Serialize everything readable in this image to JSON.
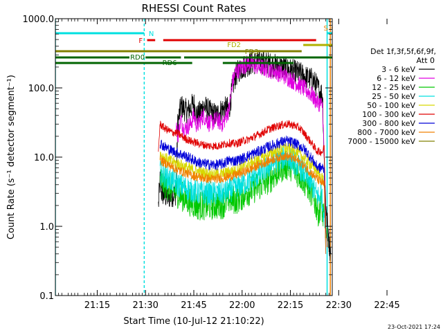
{
  "chart_data": {
    "type": "line",
    "title": "RHESSI Count Rates",
    "xlabel": "Start Time (10-Jul-12 21:10:22)",
    "ylabel": "Count Rate (s⁻¹ detector segment⁻¹)",
    "yscale": "log",
    "xlim_minutes": [
      -8,
      78
    ],
    "ylim": [
      0.1,
      1000
    ],
    "x_ticks": [
      {
        "t": 5,
        "label": "21:15"
      },
      {
        "t": 20,
        "label": "21:30"
      },
      {
        "t": 35,
        "label": "21:45"
      },
      {
        "t": 50,
        "label": "22:00"
      },
      {
        "t": 65,
        "label": "22:15"
      },
      {
        "t": 80,
        "label": "22:30"
      },
      {
        "t": 95,
        "label": "22:45"
      }
    ],
    "y_ticks": [
      {
        "v": 0.1,
        "label": "0.1"
      },
      {
        "v": 1,
        "label": "1.0"
      },
      {
        "v": 10,
        "label": "10.0"
      },
      {
        "v": 100,
        "label": "100.0"
      },
      {
        "v": 1000,
        "label": "1000.0"
      }
    ],
    "legend": {
      "header": [
        "Det 1f,3f,5f,6f,9f,",
        "Att 0"
      ],
      "placement": "right",
      "entries": [
        {
          "label": "3 - 6 keV",
          "color": "#000000"
        },
        {
          "label": "6 - 12 keV",
          "color": "#e000e0"
        },
        {
          "label": "12 - 25 keV",
          "color": "#00c800"
        },
        {
          "label": "25 - 50 keV",
          "color": "#00e0e0"
        },
        {
          "label": "50 - 100 keV",
          "color": "#d8d800"
        },
        {
          "label": "100 - 300 keV",
          "color": "#e00000"
        },
        {
          "label": "300 - 800 keV",
          "color": "#0000d8"
        },
        {
          "label": "800 - 7000 keV",
          "color": "#f08000"
        },
        {
          "label": "7000 - 15000 keV",
          "color": "#808000"
        }
      ]
    },
    "series": [
      {
        "name": "3 - 6 keV",
        "color": "#000000",
        "noise": 0.18,
        "points": [
          [
            24,
            2.0
          ],
          [
            24.5,
            4.5
          ],
          [
            25,
            3.0
          ],
          [
            27,
            2.6
          ],
          [
            28,
            2.8
          ],
          [
            29.5,
            3.0
          ],
          [
            30,
            30
          ],
          [
            31,
            55
          ],
          [
            33,
            45
          ],
          [
            35,
            60
          ],
          [
            36,
            38
          ],
          [
            38,
            55
          ],
          [
            40,
            45
          ],
          [
            42,
            40
          ],
          [
            44,
            50
          ],
          [
            46,
            50
          ],
          [
            47,
            100
          ],
          [
            48,
            150
          ],
          [
            49,
            180
          ],
          [
            51,
            210
          ],
          [
            53,
            230
          ],
          [
            56,
            240
          ],
          [
            59,
            215
          ],
          [
            62,
            200
          ],
          [
            65,
            180
          ],
          [
            68,
            160
          ],
          [
            70,
            140
          ],
          [
            72,
            130
          ],
          [
            73,
            110
          ],
          [
            74,
            90
          ],
          [
            75,
            80
          ],
          [
            75.5,
            8
          ],
          [
            76,
            2
          ],
          [
            77,
            0.6
          ],
          [
            77.5,
            0.4
          ]
        ]
      },
      {
        "name": "6 - 12 keV",
        "color": "#e000e0",
        "noise": 0.13,
        "points": [
          [
            29.5,
            30
          ],
          [
            30,
            20
          ],
          [
            31,
            35
          ],
          [
            32,
            25
          ],
          [
            34,
            30
          ],
          [
            35,
            40
          ],
          [
            36,
            28
          ],
          [
            38,
            40
          ],
          [
            40,
            30
          ],
          [
            42,
            35
          ],
          [
            44,
            30
          ],
          [
            46,
            50
          ],
          [
            47,
            120
          ],
          [
            48,
            170
          ],
          [
            50,
            200
          ],
          [
            52,
            230
          ],
          [
            54,
            210
          ],
          [
            57,
            190
          ],
          [
            60,
            175
          ],
          [
            63,
            150
          ],
          [
            66,
            125
          ],
          [
            69,
            100
          ],
          [
            71,
            85
          ],
          [
            72,
            75
          ],
          [
            73,
            65
          ],
          [
            74,
            60
          ],
          [
            75,
            55
          ],
          [
            75.5,
            10
          ]
        ]
      },
      {
        "name": "12 - 25 keV",
        "color": "#00c800",
        "noise": 0.22,
        "points": [
          [
            24.5,
            4.5
          ],
          [
            27,
            3.8
          ],
          [
            30,
            3.0
          ],
          [
            33,
            2.4
          ],
          [
            36,
            2.0
          ],
          [
            40,
            2.0
          ],
          [
            44,
            2.1
          ],
          [
            46,
            2.5
          ],
          [
            48,
            2.4
          ],
          [
            52,
            3.2
          ],
          [
            56,
            4.0
          ],
          [
            60,
            5.5
          ],
          [
            63,
            7.5
          ],
          [
            65,
            7.5
          ],
          [
            68,
            5.5
          ],
          [
            71,
            3.5
          ],
          [
            73,
            2.0
          ],
          [
            74,
            1.5
          ],
          [
            74.5,
            2.5
          ],
          [
            75,
            1.5
          ],
          [
            76,
            1.0
          ],
          [
            76.5,
            0.5
          ]
        ]
      },
      {
        "name": "25 - 50 keV",
        "color": "#00e0e0",
        "noise": 0.18,
        "points": [
          [
            24.5,
            6.0
          ],
          [
            27,
            5.0
          ],
          [
            30,
            4.0
          ],
          [
            33,
            3.5
          ],
          [
            36,
            3.1
          ],
          [
            40,
            3.0
          ],
          [
            44,
            3.0
          ],
          [
            48,
            3.6
          ],
          [
            52,
            4.5
          ],
          [
            56,
            6.0
          ],
          [
            60,
            8.5
          ],
          [
            63,
            10.0
          ],
          [
            65,
            9.5
          ],
          [
            68,
            7.0
          ],
          [
            71,
            4.5
          ],
          [
            73,
            3.0
          ],
          [
            74,
            2.5
          ],
          [
            74.5,
            3.5
          ],
          [
            75,
            2.0
          ],
          [
            76,
            1.2
          ],
          [
            76.5,
            0.5
          ]
        ]
      },
      {
        "name": "50 - 100 keV",
        "color": "#d8d800",
        "noise": 0.09,
        "points": [
          [
            24.5,
            11.0
          ],
          [
            27,
            9.0
          ],
          [
            30,
            8.0
          ],
          [
            33,
            7.0
          ],
          [
            36,
            6.2
          ],
          [
            40,
            5.6
          ],
          [
            44,
            5.7
          ],
          [
            48,
            6.5
          ],
          [
            52,
            8.0
          ],
          [
            56,
            9.5
          ],
          [
            60,
            12.0
          ],
          [
            63,
            13.5
          ],
          [
            65,
            13.0
          ],
          [
            68,
            11.0
          ],
          [
            71,
            8.0
          ],
          [
            73,
            6.5
          ],
          [
            74,
            5.5
          ],
          [
            75,
            5.0
          ],
          [
            75.5,
            4.0
          ],
          [
            76,
            0.5
          ]
        ]
      },
      {
        "name": "100 - 300 keV",
        "color": "#e00000",
        "noise": 0.06,
        "points": [
          [
            24,
            12.0
          ],
          [
            24.5,
            30
          ],
          [
            26,
            26
          ],
          [
            28,
            23
          ],
          [
            30,
            22
          ],
          [
            32,
            19
          ],
          [
            34,
            17
          ],
          [
            36,
            16
          ],
          [
            38,
            15
          ],
          [
            40,
            14.5
          ],
          [
            42,
            14.5
          ],
          [
            44,
            15
          ],
          [
            46,
            16
          ],
          [
            48,
            15.5
          ],
          [
            50,
            17
          ],
          [
            52,
            18
          ],
          [
            54,
            20
          ],
          [
            56,
            22
          ],
          [
            58,
            25
          ],
          [
            60,
            27
          ],
          [
            62,
            29
          ],
          [
            64,
            30
          ],
          [
            66,
            29
          ],
          [
            68,
            26
          ],
          [
            70,
            20
          ],
          [
            72,
            15
          ],
          [
            73,
            12.5
          ],
          [
            74,
            12
          ],
          [
            75,
            12
          ],
          [
            75.5,
            14
          ],
          [
            76,
            1.0
          ],
          [
            76.5,
            0.5
          ]
        ]
      },
      {
        "name": "300 - 800 keV",
        "color": "#0000d8",
        "noise": 0.08,
        "points": [
          [
            24.5,
            16.0
          ],
          [
            26,
            14.0
          ],
          [
            28,
            12.5
          ],
          [
            30,
            11.5
          ],
          [
            32,
            10.5
          ],
          [
            34,
            9.5
          ],
          [
            36,
            8.5
          ],
          [
            38,
            8.0
          ],
          [
            40,
            7.8
          ],
          [
            42,
            7.7
          ],
          [
            44,
            8.0
          ],
          [
            46,
            9.0
          ],
          [
            48,
            8.8
          ],
          [
            50,
            9.5
          ],
          [
            52,
            10.5
          ],
          [
            54,
            11.5
          ],
          [
            56,
            12.5
          ],
          [
            58,
            14.0
          ],
          [
            60,
            15.0
          ],
          [
            62,
            16.5
          ],
          [
            64,
            17.0
          ],
          [
            66,
            16.0
          ],
          [
            68,
            14.5
          ],
          [
            70,
            12.0
          ],
          [
            72,
            9.0
          ],
          [
            73,
            7.5
          ],
          [
            74,
            7.0
          ],
          [
            75,
            7.0
          ],
          [
            75.5,
            6.5
          ],
          [
            76,
            0.4
          ]
        ]
      },
      {
        "name": "800 - 7000 keV",
        "color": "#f08000",
        "noise": 0.07,
        "points": [
          [
            24.5,
            9.0
          ],
          [
            27,
            7.8
          ],
          [
            30,
            6.5
          ],
          [
            33,
            5.8
          ],
          [
            36,
            5.2
          ],
          [
            40,
            4.8
          ],
          [
            44,
            5.0
          ],
          [
            48,
            5.5
          ],
          [
            52,
            6.5
          ],
          [
            56,
            8.0
          ],
          [
            60,
            9.5
          ],
          [
            63,
            10.5
          ],
          [
            65,
            10.0
          ],
          [
            68,
            8.5
          ],
          [
            71,
            6.2
          ],
          [
            73,
            5.0
          ],
          [
            74,
            4.5
          ],
          [
            75,
            4.2
          ],
          [
            75.5,
            4.0
          ],
          [
            76,
            0.4
          ]
        ]
      }
    ],
    "vertical_lines": [
      {
        "t": -8,
        "color": "#00e0e0",
        "style": "solid"
      },
      {
        "t": 19.6,
        "color": "#00e0e0",
        "style": "dashed"
      },
      {
        "t": 76.4,
        "color": "#00e0e0",
        "style": "solid"
      },
      {
        "t": 77.4,
        "color": "#f08000",
        "style": "solid"
      },
      {
        "t": 78.4,
        "color": "#f08000",
        "style": "solid"
      },
      {
        "t": 95.3,
        "color": "#00e0e0",
        "style": "dashed"
      },
      {
        "t": 96.5,
        "color": "#f08000",
        "style": "dashed"
      }
    ],
    "flag_bars": [
      {
        "label": "N",
        "color": "#00e0e0",
        "label_t": 21.8,
        "label_y": 48,
        "bars": [
          [
            -8,
            19.6,
            48
          ],
          [
            76.4,
            97,
            48
          ]
        ]
      },
      {
        "label": "S",
        "color": "#f08000",
        "label_t": 76.0,
        "label_y": 40,
        "bars": [
          [
            77.8,
            97,
            40
          ]
        ]
      },
      {
        "label": "F",
        "color": "#e00000",
        "label_t": 18.5,
        "label_y": 58,
        "bars": [
          [
            20.5,
            23,
            58
          ],
          [
            25.5,
            73,
            58
          ]
        ]
      },
      {
        "label": "FD2",
        "color": "#b0b000",
        "label_t": 47.5,
        "label_y": 64,
        "bars": [
          [
            69,
            97,
            65
          ]
        ]
      },
      {
        "label": "FD3",
        "color": "#808000",
        "label_t": 53.0,
        "label_y": 74,
        "bars": [
          [
            -8,
            68.5,
            74
          ],
          [
            96,
            97,
            74
          ]
        ]
      },
      {
        "label": "RD0",
        "color": "#006400",
        "label_t": 17.5,
        "label_y": 82,
        "bars": [
          [
            -8,
            15,
            83
          ],
          [
            20,
            31,
            83
          ],
          [
            32,
            97,
            83
          ]
        ]
      },
      {
        "label": "RD6",
        "color": "#006400",
        "label_t": 27.5,
        "label_y": 90,
        "bars": [
          [
            -8,
            34.5,
            91
          ],
          [
            44,
            66,
            91
          ]
        ]
      }
    ],
    "footer_timestamp": "23-Oct-2021 17:24"
  }
}
